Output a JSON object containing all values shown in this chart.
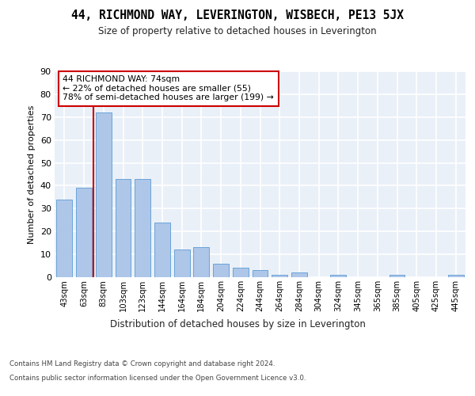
{
  "title": "44, RICHMOND WAY, LEVERINGTON, WISBECH, PE13 5JX",
  "subtitle": "Size of property relative to detached houses in Leverington",
  "xlabel": "Distribution of detached houses by size in Leverington",
  "ylabel": "Number of detached properties",
  "categories": [
    "43sqm",
    "63sqm",
    "83sqm",
    "103sqm",
    "123sqm",
    "144sqm",
    "164sqm",
    "184sqm",
    "204sqm",
    "224sqm",
    "244sqm",
    "264sqm",
    "284sqm",
    "304sqm",
    "324sqm",
    "345sqm",
    "365sqm",
    "385sqm",
    "405sqm",
    "425sqm",
    "445sqm"
  ],
  "values": [
    34,
    39,
    72,
    43,
    43,
    24,
    12,
    13,
    6,
    4,
    3,
    1,
    2,
    0,
    1,
    0,
    0,
    1,
    0,
    0,
    1
  ],
  "bar_color": "#aec6e8",
  "bar_edgecolor": "#5b9bd5",
  "background_color": "#eaf0f8",
  "grid_color": "#ffffff",
  "property_line_color": "#cc0000",
  "annotation_text": "44 RICHMOND WAY: 74sqm\n← 22% of detached houses are smaller (55)\n78% of semi-detached houses are larger (199) →",
  "annotation_box_color": "#cc0000",
  "ylim": [
    0,
    90
  ],
  "yticks": [
    0,
    10,
    20,
    30,
    40,
    50,
    60,
    70,
    80,
    90
  ],
  "footer_line1": "Contains HM Land Registry data © Crown copyright and database right 2024.",
  "footer_line2": "Contains public sector information licensed under the Open Government Licence v3.0.",
  "bin_width": 20,
  "property_sqm": 74,
  "bin_starts": [
    43,
    63,
    83,
    103,
    123,
    144,
    164,
    184,
    204,
    224,
    244,
    264,
    284,
    304,
    324,
    345,
    365,
    385,
    405,
    425,
    445
  ]
}
